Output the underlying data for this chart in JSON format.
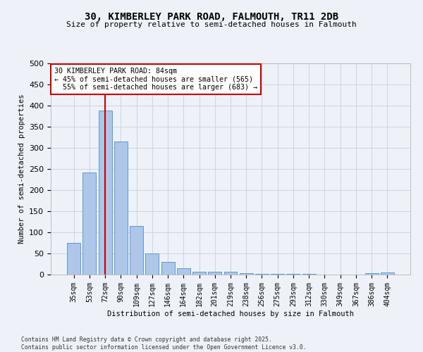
{
  "title_line1": "30, KIMBERLEY PARK ROAD, FALMOUTH, TR11 2DB",
  "title_line2": "Size of property relative to semi-detached houses in Falmouth",
  "xlabel": "Distribution of semi-detached houses by size in Falmouth",
  "ylabel": "Number of semi-detached properties",
  "bar_color": "#aec6e8",
  "bar_edge_color": "#5b9bd5",
  "categories": [
    "35sqm",
    "53sqm",
    "72sqm",
    "90sqm",
    "109sqm",
    "127sqm",
    "146sqm",
    "164sqm",
    "182sqm",
    "201sqm",
    "219sqm",
    "238sqm",
    "256sqm",
    "275sqm",
    "293sqm",
    "312sqm",
    "330sqm",
    "349sqm",
    "367sqm",
    "386sqm",
    "404sqm"
  ],
  "values": [
    75,
    242,
    388,
    315,
    115,
    50,
    30,
    15,
    7,
    7,
    6,
    3,
    2,
    2,
    1,
    1,
    0,
    0,
    0,
    4,
    5
  ],
  "ylim": [
    0,
    500
  ],
  "yticks": [
    0,
    50,
    100,
    150,
    200,
    250,
    300,
    350,
    400,
    450,
    500
  ],
  "property_label": "30 KIMBERLEY PARK ROAD: 84sqm",
  "pct_smaller": 45,
  "n_smaller": 565,
  "pct_larger": 55,
  "n_larger": 683,
  "vline_bar_index": 2,
  "annotation_box_color": "#ffffff",
  "annotation_box_edge": "#cc0000",
  "vline_color": "#cc0000",
  "grid_color": "#cdd6e8",
  "background_color": "#eef2f8",
  "footnote_line1": "Contains HM Land Registry data © Crown copyright and database right 2025.",
  "footnote_line2": "Contains public sector information licensed under the Open Government Licence v3.0."
}
